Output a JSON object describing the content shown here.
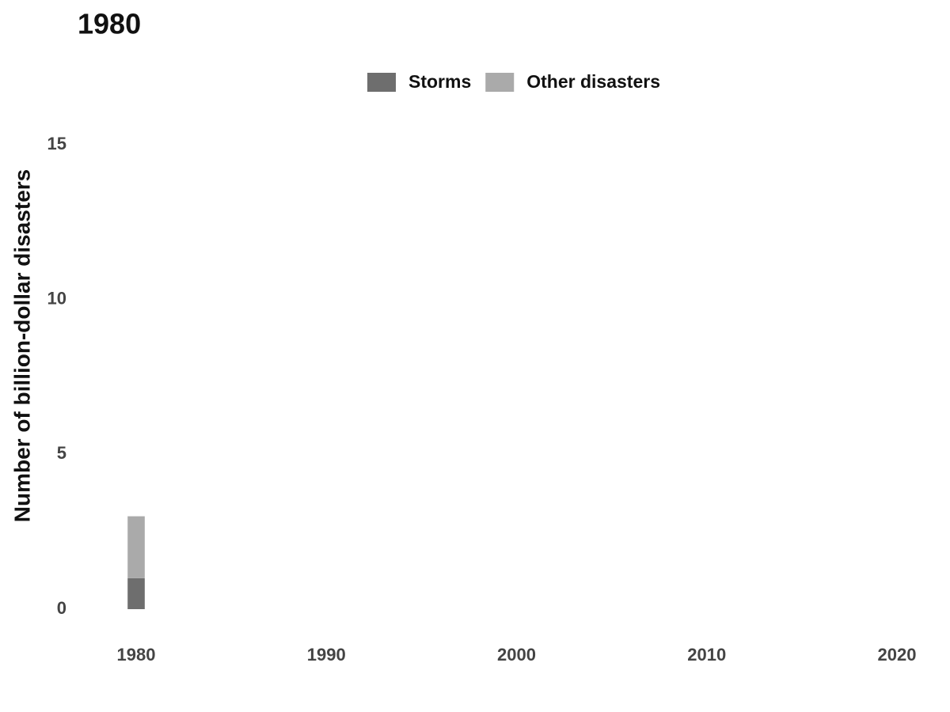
{
  "chart_data": {
    "type": "bar",
    "title": "1980",
    "y_label": "Number of billion-dollar disasters",
    "x": [
      1980
    ],
    "series": [
      {
        "name": "Storms",
        "color": "#6e6e6e",
        "values": [
          1
        ]
      },
      {
        "name": "Other disasters",
        "color": "#aaaaaa",
        "values": [
          2
        ]
      }
    ],
    "stacked": true,
    "xlim": [
      1979,
      2021
    ],
    "xticks": [
      1980,
      1990,
      2000,
      2010,
      2020
    ],
    "ylim": [
      0,
      15
    ],
    "yticks": [
      0,
      5,
      10,
      15
    ],
    "grid": false,
    "legend": "top"
  }
}
